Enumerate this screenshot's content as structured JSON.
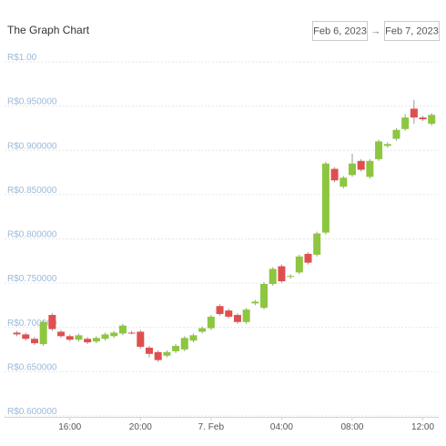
{
  "chart_data": {
    "type": "candlestick",
    "title": "The Graph Chart",
    "date_range": {
      "from": "Feb 6, 2023",
      "separator": "→",
      "to": "Feb 7, 2023"
    },
    "up_color": "#8dc63f",
    "down_color": "#e04f4f",
    "grid": true,
    "x": [
      13,
      13.5,
      14,
      14.5,
      15,
      15.5,
      16,
      16.5,
      17,
      17.5,
      18,
      18.5,
      19,
      19.5,
      20,
      20.5,
      21,
      21.5,
      22,
      22.5,
      23,
      23.5,
      24,
      24.5,
      25,
      25.5,
      26,
      26.5,
      27,
      27.5,
      28,
      28.5,
      29,
      29.5,
      30,
      30.5,
      31,
      31.5,
      32,
      32.5,
      33,
      33.5,
      34,
      34.5,
      35,
      35.5,
      36,
      36.5
    ],
    "open": [
      0.689,
      0.687,
      0.682,
      0.676,
      0.709,
      0.69,
      0.685,
      0.681,
      0.682,
      0.679,
      0.682,
      0.685,
      0.688,
      0.689,
      0.69,
      0.672,
      0.667,
      0.663,
      0.668,
      0.67,
      0.68,
      0.69,
      0.694,
      0.719,
      0.714,
      0.709,
      0.701,
      0.722,
      0.717,
      0.744,
      0.764,
      0.752,
      0.757,
      0.778,
      0.777,
      0.802,
      0.874,
      0.854,
      0.867,
      0.883,
      0.865,
      0.885,
      0.9,
      0.908,
      0.919,
      0.942,
      0.932,
      0.925
    ],
    "high": [
      0.691,
      0.689,
      0.684,
      0.703,
      0.711,
      0.692,
      0.687,
      0.688,
      0.684,
      0.685,
      0.689,
      0.691,
      0.699,
      0.691,
      0.692,
      0.674,
      0.669,
      0.669,
      0.676,
      0.685,
      0.688,
      0.696,
      0.709,
      0.721,
      0.716,
      0.711,
      0.717,
      0.726,
      0.746,
      0.763,
      0.766,
      0.755,
      0.777,
      0.78,
      0.803,
      0.882,
      0.876,
      0.866,
      0.891,
      0.885,
      0.885,
      0.907,
      0.904,
      0.92,
      0.936,
      0.952,
      0.934,
      0.937
    ],
    "low": [
      0.685,
      0.68,
      0.675,
      0.674,
      0.691,
      0.683,
      0.679,
      0.679,
      0.676,
      0.677,
      0.68,
      0.683,
      0.686,
      0.687,
      0.671,
      0.661,
      0.656,
      0.661,
      0.666,
      0.668,
      0.678,
      0.688,
      0.692,
      0.708,
      0.705,
      0.699,
      0.699,
      0.72,
      0.715,
      0.742,
      0.745,
      0.75,
      0.755,
      0.766,
      0.775,
      0.8,
      0.859,
      0.852,
      0.865,
      0.871,
      0.863,
      0.883,
      0.898,
      0.906,
      0.917,
      0.925,
      0.928,
      0.923
    ],
    "close": [
      0.687,
      0.682,
      0.677,
      0.701,
      0.693,
      0.685,
      0.681,
      0.686,
      0.678,
      0.683,
      0.687,
      0.689,
      0.697,
      0.688,
      0.673,
      0.665,
      0.658,
      0.667,
      0.674,
      0.683,
      0.686,
      0.694,
      0.707,
      0.71,
      0.707,
      0.701,
      0.715,
      0.724,
      0.744,
      0.761,
      0.747,
      0.753,
      0.775,
      0.768,
      0.801,
      0.88,
      0.861,
      0.864,
      0.88,
      0.873,
      0.883,
      0.905,
      0.902,
      0.918,
      0.932,
      0.932,
      0.93,
      0.935
    ],
    "xlim": [
      12.3,
      36.9
    ],
    "xticks": [
      {
        "value": 16,
        "label": "16:00"
      },
      {
        "value": 20,
        "label": "20:00"
      },
      {
        "value": 24,
        "label": "7. Feb"
      },
      {
        "value": 28,
        "label": "04:00"
      },
      {
        "value": 32,
        "label": "08:00"
      },
      {
        "value": 36,
        "label": "12:00"
      }
    ],
    "ylim": [
      0.6,
      1.0
    ],
    "yticks": [
      {
        "value": 0.6,
        "label": "R$0.600000"
      },
      {
        "value": 0.65,
        "label": "R$0.650000"
      },
      {
        "value": 0.7,
        "label": "R$0.700000"
      },
      {
        "value": 0.75,
        "label": "R$0.750000"
      },
      {
        "value": 0.8,
        "label": "R$0.800000"
      },
      {
        "value": 0.85,
        "label": "R$0.850000"
      },
      {
        "value": 0.9,
        "label": "R$0.900000"
      },
      {
        "value": 0.95,
        "label": "R$0.950000"
      },
      {
        "value": 1.0,
        "label": "R$1.00"
      }
    ]
  }
}
